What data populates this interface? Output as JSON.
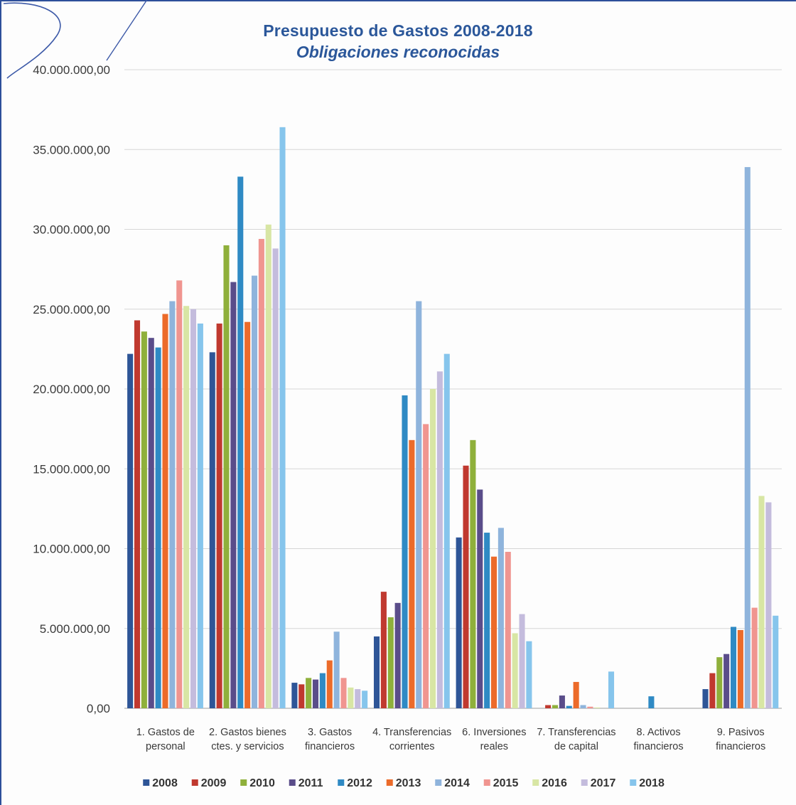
{
  "chart_data": {
    "type": "bar",
    "title": "Presupuesto de Gastos 2008-2018",
    "subtitle": "Obligaciones reconocidas",
    "ylim": [
      0,
      40000000
    ],
    "yticks": [
      "0,00",
      "5.000.000,00",
      "10.000.000,00",
      "15.000.000,00",
      "20.000.000,00",
      "25.000.000,00",
      "30.000.000,00",
      "35.000.000,00",
      "40.000.000,00"
    ],
    "grid": true,
    "legend_position": "bottom",
    "categories": [
      [
        "1. Gastos de",
        "personal"
      ],
      [
        "2. Gastos bienes",
        "ctes. y servicios"
      ],
      [
        "3. Gastos",
        "financieros"
      ],
      [
        "4. Transferencias",
        "corrientes"
      ],
      [
        "6. Inversiones",
        "reales"
      ],
      [
        "7. Transferencias",
        "de capital"
      ],
      [
        "8. Activos",
        "financieros"
      ],
      [
        "9. Pasivos",
        "financieros"
      ]
    ],
    "series": [
      {
        "name": "2008",
        "color": "#2e5597",
        "values": [
          22200000,
          22300000,
          1600000,
          4500000,
          10700000,
          0,
          0,
          1200000
        ]
      },
      {
        "name": "2009",
        "color": "#c0392f",
        "values": [
          24300000,
          24100000,
          1500000,
          7300000,
          15200000,
          200000,
          0,
          2200000
        ]
      },
      {
        "name": "2010",
        "color": "#8fb03b",
        "values": [
          23600000,
          29000000,
          1900000,
          5700000,
          16800000,
          200000,
          0,
          3200000
        ]
      },
      {
        "name": "2011",
        "color": "#5a4d8a",
        "values": [
          23200000,
          26700000,
          1800000,
          6600000,
          13700000,
          800000,
          0,
          3400000
        ]
      },
      {
        "name": "2012",
        "color": "#2f8ac4",
        "values": [
          22600000,
          33300000,
          2200000,
          19600000,
          11000000,
          150000,
          750000,
          5100000
        ]
      },
      {
        "name": "2013",
        "color": "#ec6b2a",
        "values": [
          24700000,
          24200000,
          3000000,
          16800000,
          9500000,
          1650000,
          0,
          4900000
        ]
      },
      {
        "name": "2014",
        "color": "#8fb4dc",
        "values": [
          25500000,
          27100000,
          4800000,
          25500000,
          11300000,
          200000,
          0,
          33900000
        ]
      },
      {
        "name": "2015",
        "color": "#f09590",
        "values": [
          26800000,
          29400000,
          1900000,
          17800000,
          9800000,
          100000,
          0,
          6300000
        ]
      },
      {
        "name": "2016",
        "color": "#d8e6a4",
        "values": [
          25200000,
          30300000,
          1300000,
          20000000,
          4700000,
          50000,
          0,
          13300000
        ]
      },
      {
        "name": "2017",
        "color": "#c4bcdd",
        "values": [
          25000000,
          28800000,
          1200000,
          21100000,
          5900000,
          0,
          0,
          12900000
        ]
      },
      {
        "name": "2018",
        "color": "#86c5ec",
        "values": [
          24100000,
          36400000,
          1100000,
          22200000,
          4200000,
          2300000,
          0,
          5800000
        ]
      }
    ]
  }
}
